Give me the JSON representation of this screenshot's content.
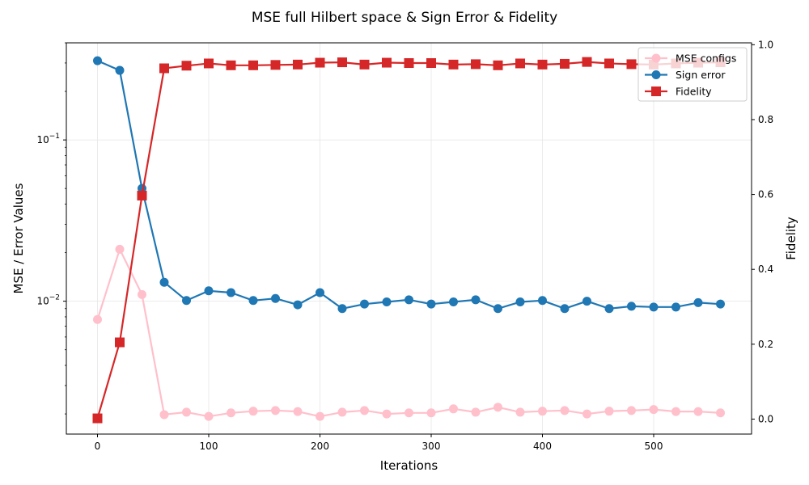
{
  "chart_data": {
    "type": "line",
    "title": "MSE full Hilbert space & Sign Error & Fidelity",
    "xlabel": "Iterations",
    "ylabel_left": "MSE / Error Values",
    "ylabel_right": "Fidelity",
    "x_ticks": [
      "0",
      "100",
      "200",
      "300",
      "400",
      "500"
    ],
    "y_left_scale": "log",
    "y_left_range": [
      0.0015,
      0.4
    ],
    "y_left_ticks": [
      {
        "base": "10",
        "exp": "−1",
        "value": 0.1
      },
      {
        "base": "10",
        "exp": "−2",
        "value": 0.01
      }
    ],
    "y_right_range": [
      -0.04,
      1.005
    ],
    "y_right_ticks": [
      "0.0",
      "0.2",
      "0.4",
      "0.6",
      "0.8",
      "1.0"
    ],
    "x_range": [
      -28,
      588
    ],
    "x": [
      0,
      20,
      40,
      60,
      80,
      100,
      120,
      140,
      160,
      180,
      200,
      220,
      240,
      260,
      280,
      300,
      320,
      340,
      360,
      380,
      400,
      420,
      440,
      460,
      480,
      500,
      520,
      540,
      560
    ],
    "series": [
      {
        "name": "MSE configs",
        "axis": "left",
        "color": "#ffc0cb",
        "marker": "circle",
        "values": [
          0.0077,
          0.021,
          0.011,
          0.00198,
          0.00205,
          0.00193,
          0.00203,
          0.00208,
          0.0021,
          0.00207,
          0.00193,
          0.00205,
          0.0021,
          0.002,
          0.00203,
          0.00203,
          0.00215,
          0.00205,
          0.0022,
          0.00205,
          0.00208,
          0.0021,
          0.002,
          0.00208,
          0.0021,
          0.00213,
          0.00207,
          0.00207,
          0.00203
        ]
      },
      {
        "name": "Sign error",
        "axis": "left",
        "color": "#1f77b4",
        "marker": "circle",
        "values": [
          0.31,
          0.27,
          0.05,
          0.0131,
          0.0101,
          0.0116,
          0.0113,
          0.0101,
          0.0104,
          0.0095,
          0.0113,
          0.009,
          0.0096,
          0.0099,
          0.0102,
          0.0096,
          0.0099,
          0.0102,
          0.009,
          0.0099,
          0.0101,
          0.009,
          0.01,
          0.009,
          0.0093,
          0.0092,
          0.0092,
          0.0098,
          0.0096
        ]
      },
      {
        "name": "Fidelity",
        "axis": "right",
        "color": "#d62728",
        "marker": "square",
        "values": [
          0.002,
          0.205,
          0.597,
          0.937,
          0.944,
          0.95,
          0.945,
          0.945,
          0.946,
          0.947,
          0.952,
          0.953,
          0.947,
          0.952,
          0.951,
          0.951,
          0.947,
          0.948,
          0.945,
          0.95,
          0.947,
          0.949,
          0.954,
          0.95,
          0.948,
          0.947,
          0.95,
          0.952,
          0.953
        ]
      }
    ],
    "grid": true,
    "legend_position": "top-right"
  }
}
